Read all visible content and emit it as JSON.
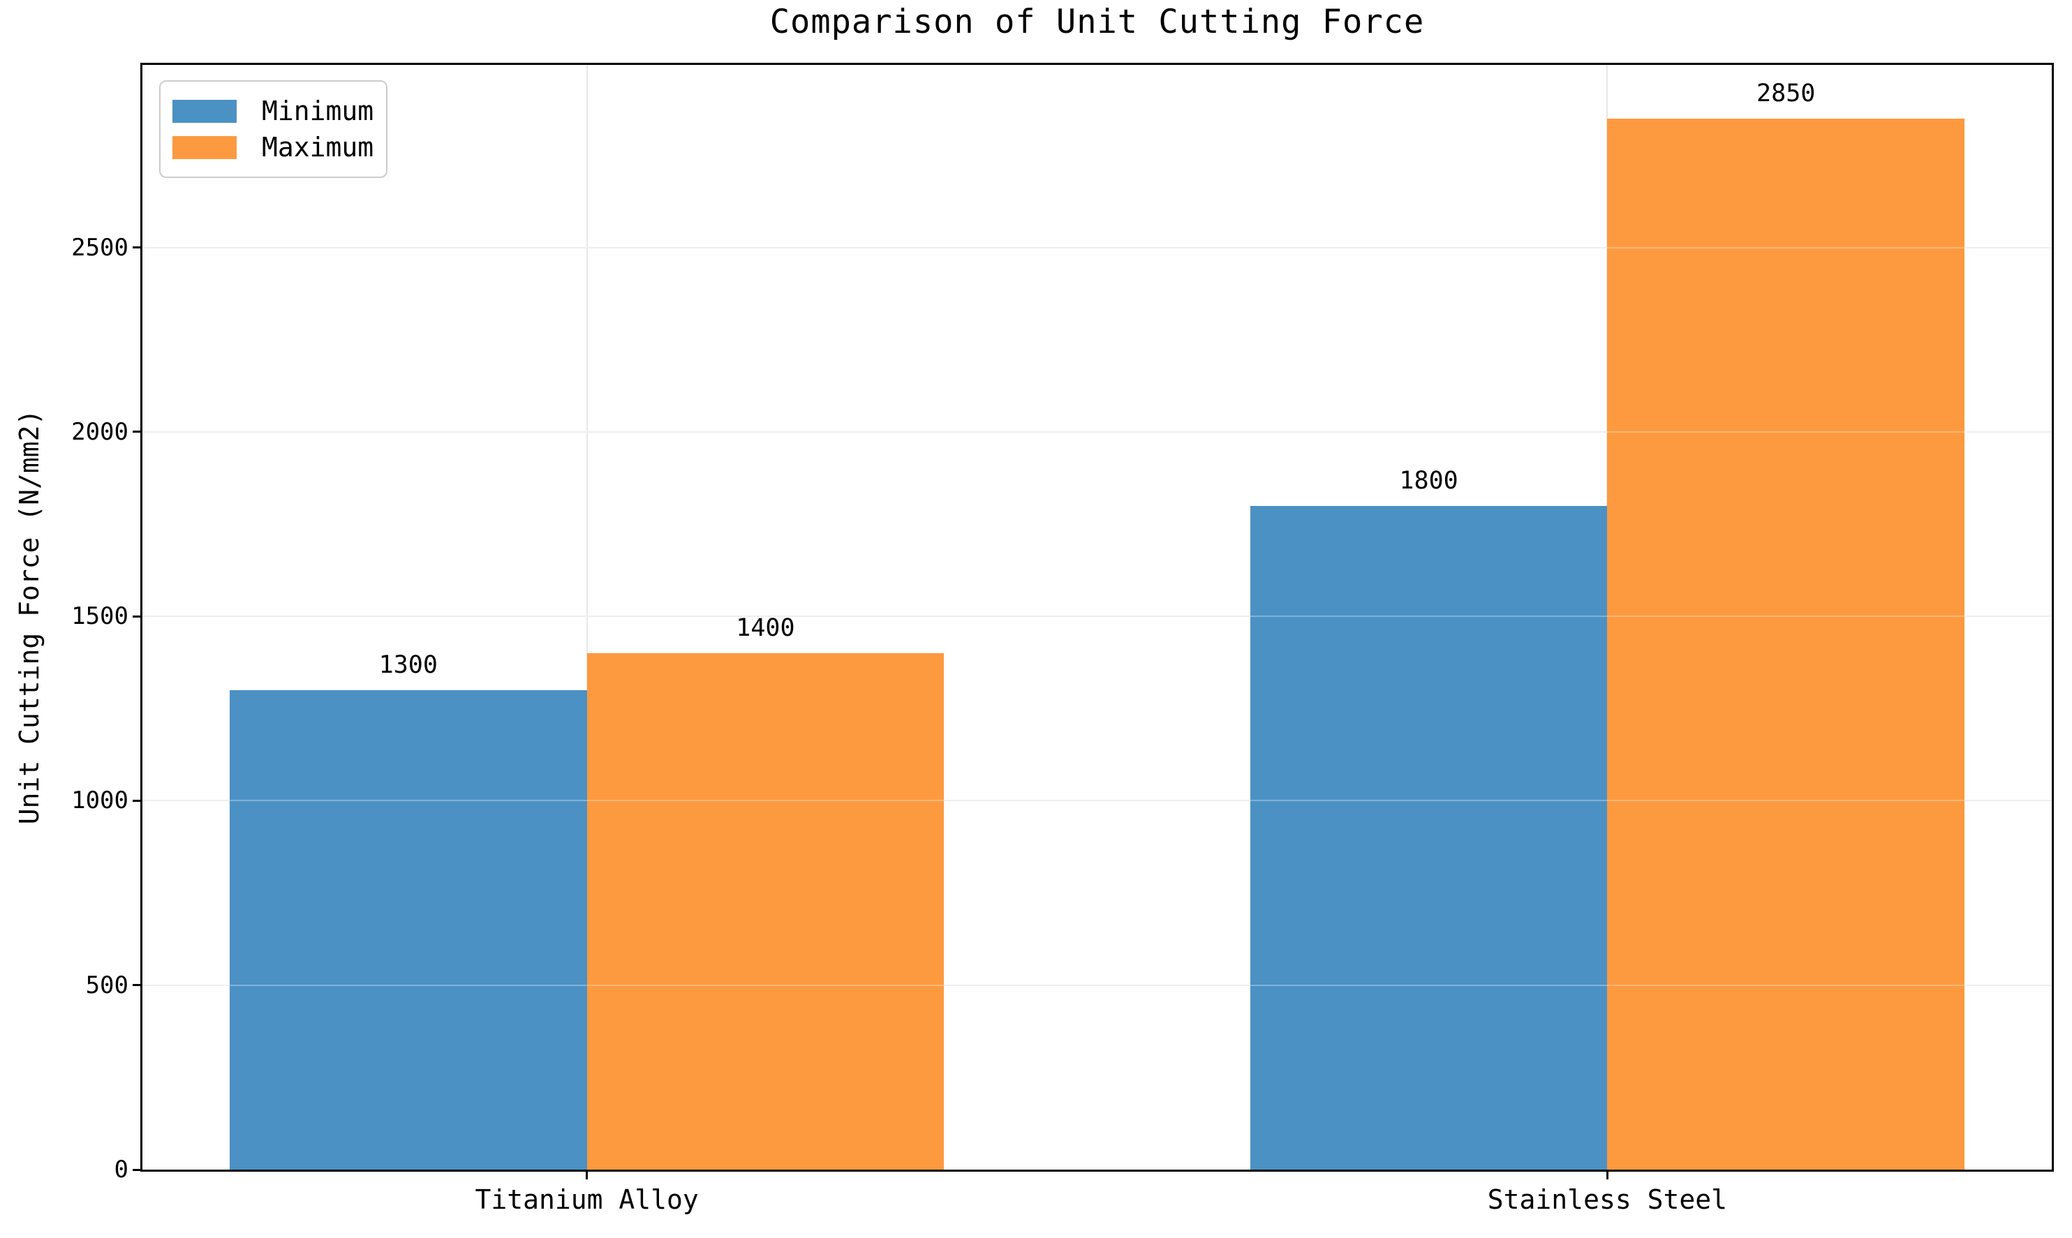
{
  "chart_data": {
    "type": "bar",
    "title": "Comparison of Unit Cutting Force",
    "xlabel": "",
    "ylabel": "Unit Cutting Force (N/mm2)",
    "categories": [
      "Titanium Alloy",
      "Stainless Steel"
    ],
    "series": [
      {
        "name": "Minimum",
        "color": "#4b91c4",
        "values": [
          1300,
          1800
        ]
      },
      {
        "name": "Maximum",
        "color": "#fd9a40",
        "values": [
          1400,
          2850
        ]
      }
    ],
    "bar_value_labels": [
      "1300",
      "1400",
      "1800",
      "2850"
    ],
    "yticks": [
      0,
      500,
      1000,
      1500,
      2000,
      2500
    ],
    "ylim": [
      0,
      2995
    ],
    "grid": true,
    "grid_color": "#e7e7e7",
    "axis_color": "#000000",
    "legend_position": "upper left"
  }
}
